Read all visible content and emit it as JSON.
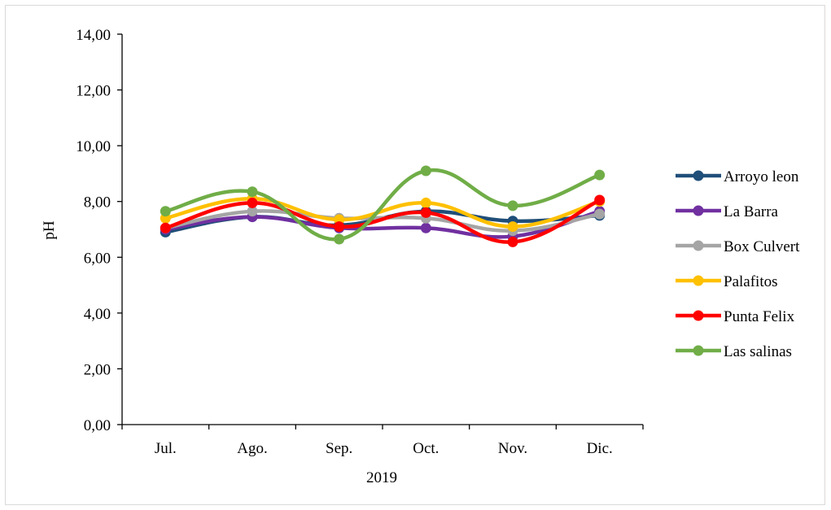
{
  "chart_data": {
    "type": "line",
    "smooth": true,
    "markers": "circle",
    "title": "",
    "xlabel": "2019",
    "ylabel": "pH",
    "categories": [
      "Jul.",
      "Ago.",
      "Sep.",
      "Oct.",
      "Nov.",
      "Dic."
    ],
    "ylim": [
      0,
      14
    ],
    "yticks": [
      "0,00",
      "2,00",
      "4,00",
      "6,00",
      "8,00",
      "10,00",
      "12,00",
      "14,00"
    ],
    "grid": false,
    "legend_position": "right",
    "series": [
      {
        "name": "Arroyo leon",
        "color": "#1f4e79",
        "values": [
          6.9,
          7.45,
          7.15,
          7.65,
          7.3,
          7.5
        ]
      },
      {
        "name": "La Barra",
        "color": "#7030a0",
        "values": [
          7.0,
          7.45,
          7.05,
          7.05,
          6.75,
          7.65
        ]
      },
      {
        "name": "Box Culvert",
        "color": "#a5a5a5",
        "values": [
          7.05,
          7.65,
          7.4,
          7.4,
          6.95,
          7.55
        ]
      },
      {
        "name": "Palafitos",
        "color": "#ffc000",
        "values": [
          7.4,
          8.1,
          7.35,
          7.95,
          7.1,
          8.0
        ]
      },
      {
        "name": "Punta Felix",
        "color": "#ff0000",
        "values": [
          7.05,
          7.95,
          7.1,
          7.6,
          6.55,
          8.05
        ]
      },
      {
        "name": "Las salinas",
        "color": "#70ad47",
        "values": [
          7.65,
          8.35,
          6.65,
          9.1,
          7.85,
          8.95
        ]
      }
    ]
  }
}
